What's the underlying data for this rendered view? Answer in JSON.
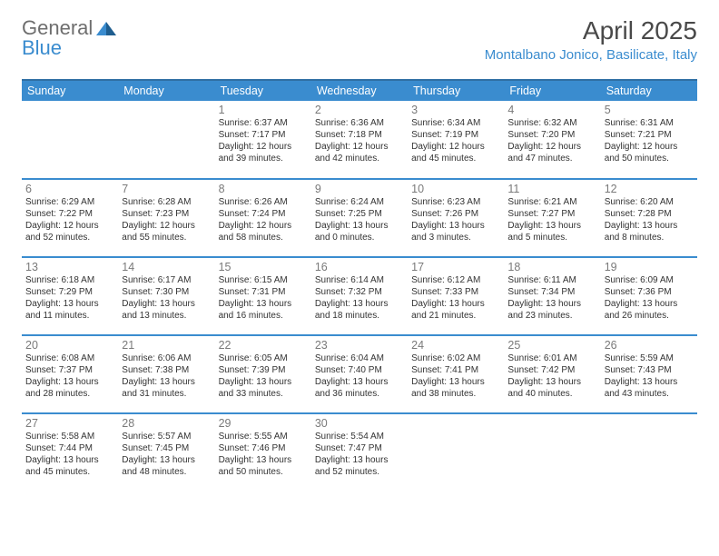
{
  "brand": {
    "word1": "General",
    "word2": "Blue",
    "color_gray": "#6e6e6e",
    "color_blue": "#3a8ccf"
  },
  "title": "April 2025",
  "location": "Montalbano Jonico, Basilicate, Italy",
  "colors": {
    "header_bg": "#3a8ccf",
    "header_border_top": "#2f6fa3",
    "row_border": "#3a8ccf",
    "background": "#ffffff",
    "daynum": "#7a7a7a",
    "detail_text": "#333333",
    "title_text": "#494949"
  },
  "typography": {
    "title_fontsize": 28,
    "location_fontsize": 15,
    "dayname_fontsize": 12.5,
    "daynum_fontsize": 12.5,
    "detail_fontsize": 10
  },
  "day_names": [
    "Sunday",
    "Monday",
    "Tuesday",
    "Wednesday",
    "Thursday",
    "Friday",
    "Saturday"
  ],
  "weeks": [
    [
      null,
      null,
      {
        "n": "1",
        "sr": "6:37 AM",
        "ss": "7:17 PM",
        "dl": "12 hours and 39 minutes."
      },
      {
        "n": "2",
        "sr": "6:36 AM",
        "ss": "7:18 PM",
        "dl": "12 hours and 42 minutes."
      },
      {
        "n": "3",
        "sr": "6:34 AM",
        "ss": "7:19 PM",
        "dl": "12 hours and 45 minutes."
      },
      {
        "n": "4",
        "sr": "6:32 AM",
        "ss": "7:20 PM",
        "dl": "12 hours and 47 minutes."
      },
      {
        "n": "5",
        "sr": "6:31 AM",
        "ss": "7:21 PM",
        "dl": "12 hours and 50 minutes."
      }
    ],
    [
      {
        "n": "6",
        "sr": "6:29 AM",
        "ss": "7:22 PM",
        "dl": "12 hours and 52 minutes."
      },
      {
        "n": "7",
        "sr": "6:28 AM",
        "ss": "7:23 PM",
        "dl": "12 hours and 55 minutes."
      },
      {
        "n": "8",
        "sr": "6:26 AM",
        "ss": "7:24 PM",
        "dl": "12 hours and 58 minutes."
      },
      {
        "n": "9",
        "sr": "6:24 AM",
        "ss": "7:25 PM",
        "dl": "13 hours and 0 minutes."
      },
      {
        "n": "10",
        "sr": "6:23 AM",
        "ss": "7:26 PM",
        "dl": "13 hours and 3 minutes."
      },
      {
        "n": "11",
        "sr": "6:21 AM",
        "ss": "7:27 PM",
        "dl": "13 hours and 5 minutes."
      },
      {
        "n": "12",
        "sr": "6:20 AM",
        "ss": "7:28 PM",
        "dl": "13 hours and 8 minutes."
      }
    ],
    [
      {
        "n": "13",
        "sr": "6:18 AM",
        "ss": "7:29 PM",
        "dl": "13 hours and 11 minutes."
      },
      {
        "n": "14",
        "sr": "6:17 AM",
        "ss": "7:30 PM",
        "dl": "13 hours and 13 minutes."
      },
      {
        "n": "15",
        "sr": "6:15 AM",
        "ss": "7:31 PM",
        "dl": "13 hours and 16 minutes."
      },
      {
        "n": "16",
        "sr": "6:14 AM",
        "ss": "7:32 PM",
        "dl": "13 hours and 18 minutes."
      },
      {
        "n": "17",
        "sr": "6:12 AM",
        "ss": "7:33 PM",
        "dl": "13 hours and 21 minutes."
      },
      {
        "n": "18",
        "sr": "6:11 AM",
        "ss": "7:34 PM",
        "dl": "13 hours and 23 minutes."
      },
      {
        "n": "19",
        "sr": "6:09 AM",
        "ss": "7:36 PM",
        "dl": "13 hours and 26 minutes."
      }
    ],
    [
      {
        "n": "20",
        "sr": "6:08 AM",
        "ss": "7:37 PM",
        "dl": "13 hours and 28 minutes."
      },
      {
        "n": "21",
        "sr": "6:06 AM",
        "ss": "7:38 PM",
        "dl": "13 hours and 31 minutes."
      },
      {
        "n": "22",
        "sr": "6:05 AM",
        "ss": "7:39 PM",
        "dl": "13 hours and 33 minutes."
      },
      {
        "n": "23",
        "sr": "6:04 AM",
        "ss": "7:40 PM",
        "dl": "13 hours and 36 minutes."
      },
      {
        "n": "24",
        "sr": "6:02 AM",
        "ss": "7:41 PM",
        "dl": "13 hours and 38 minutes."
      },
      {
        "n": "25",
        "sr": "6:01 AM",
        "ss": "7:42 PM",
        "dl": "13 hours and 40 minutes."
      },
      {
        "n": "26",
        "sr": "5:59 AM",
        "ss": "7:43 PM",
        "dl": "13 hours and 43 minutes."
      }
    ],
    [
      {
        "n": "27",
        "sr": "5:58 AM",
        "ss": "7:44 PM",
        "dl": "13 hours and 45 minutes."
      },
      {
        "n": "28",
        "sr": "5:57 AM",
        "ss": "7:45 PM",
        "dl": "13 hours and 48 minutes."
      },
      {
        "n": "29",
        "sr": "5:55 AM",
        "ss": "7:46 PM",
        "dl": "13 hours and 50 minutes."
      },
      {
        "n": "30",
        "sr": "5:54 AM",
        "ss": "7:47 PM",
        "dl": "13 hours and 52 minutes."
      },
      null,
      null,
      null
    ]
  ],
  "labels": {
    "sunrise": "Sunrise:",
    "sunset": "Sunset:",
    "daylight": "Daylight:"
  }
}
